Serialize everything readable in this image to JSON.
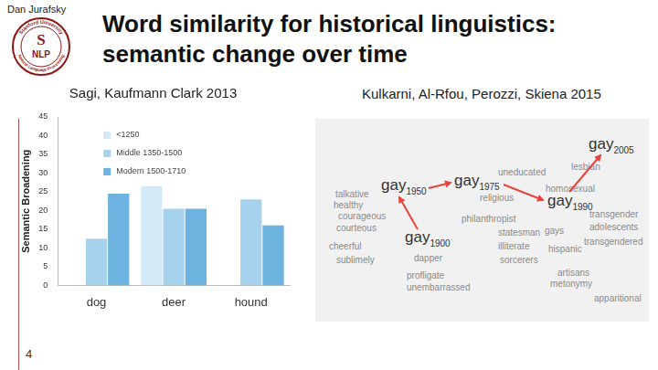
{
  "chart_data": {
    "type": "bar",
    "title": "Sagi, Kaufmann Clark 2013",
    "categories": [
      "dog",
      "deer",
      "hound"
    ],
    "series": [
      {
        "name": "<1250",
        "color": "#d3e9f6",
        "values": [
          null,
          26.5,
          null
        ]
      },
      {
        "name": "Middle 1350-1500",
        "color": "#a6d2ee",
        "values": [
          12.5,
          20.5,
          23
        ]
      },
      {
        "name": "Modern 1500-1710",
        "color": "#6cb3df",
        "values": [
          24.5,
          20.5,
          16
        ]
      }
    ],
    "y_label": "Semantic Broadening",
    "ylim": [
      0,
      45
    ],
    "yticks": [
      0,
      5,
      10,
      15,
      20,
      25,
      30,
      35,
      40,
      45
    ],
    "grid": false,
    "legend": "top-left"
  },
  "slide": {
    "author": "Dan Jurafsky",
    "logo": {
      "top": "Stanford University",
      "letter": "S",
      "middle": "NLP",
      "bottom": "Natural Language Processing"
    },
    "title": [
      "Word similarity for historical linguistics:",
      "semantic change over time"
    ],
    "page": "4"
  },
  "figure": {
    "caption": "Kulkarni, Al-Rfou, Perozzi, Skiena 2015",
    "words": [
      "talkative",
      "healthy",
      "courageous",
      "courteous",
      "cheerful",
      "sublimely",
      "dapper",
      "profligate",
      "unembarrassed",
      "uneducated",
      "religious",
      "philanthropist",
      "statesman",
      "illiterate",
      "sorcerers",
      "lesbian",
      "homosexual",
      "transgender",
      "gays",
      "adolescents",
      "transgendered",
      "hispanic",
      "artisans",
      "metonymy",
      "apparitional"
    ],
    "trajectory": [
      {
        "word": "gay",
        "year": "1900"
      },
      {
        "word": "gay",
        "year": "1950"
      },
      {
        "word": "gay",
        "year": "1975"
      },
      {
        "word": "gay",
        "year": "1990"
      },
      {
        "word": "gay",
        "year": "2005"
      }
    ]
  }
}
